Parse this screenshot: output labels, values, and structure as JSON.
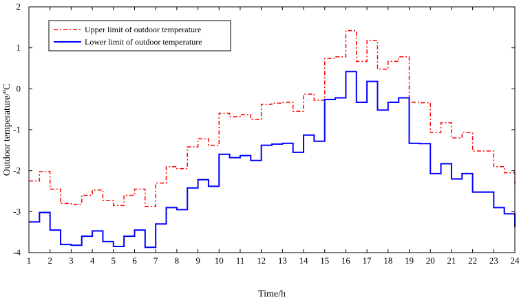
{
  "chart_data": {
    "type": "line",
    "title": "",
    "xlabel": "Time/h",
    "ylabel": "Outdoor temperature/ºC",
    "xlim": [
      1,
      24
    ],
    "ylim": [
      -4,
      2
    ],
    "x_ticks": [
      "1",
      "2",
      "3",
      "4",
      "5",
      "6",
      "7",
      "8",
      "9",
      "10",
      "11",
      "12",
      "13",
      "14",
      "15",
      "16",
      "17",
      "18",
      "19",
      "20",
      "21",
      "22",
      "23",
      "24"
    ],
    "y_ticks": [
      "-4",
      "-3",
      "-2",
      "-1",
      "0",
      "1",
      "2"
    ],
    "grid": false,
    "legend_position": "top-left",
    "series": [
      {
        "name": "Upper limit of outdoor temperature",
        "color": "#ff0000",
        "line_style": "dash-dot",
        "step": "post",
        "x": [
          1,
          1.5,
          2,
          2.5,
          3,
          3.5,
          4,
          4.5,
          5,
          5.5,
          6,
          6.5,
          7,
          7.5,
          8,
          8.5,
          9,
          9.5,
          10,
          10.5,
          11,
          11.5,
          12,
          12.5,
          13,
          13.5,
          14,
          14.5,
          15,
          15.5,
          16,
          16.5,
          17,
          17.5,
          18,
          18.5,
          19,
          19.5,
          20,
          20.5,
          21,
          21.5,
          22,
          22.5,
          23,
          23.5,
          24
        ],
        "values": [
          -2.25,
          -2.02,
          -2.45,
          -2.8,
          -2.82,
          -2.6,
          -2.47,
          -2.73,
          -2.85,
          -2.6,
          -2.45,
          -2.87,
          -2.3,
          -1.9,
          -1.95,
          -1.42,
          -1.22,
          -1.38,
          -0.6,
          -0.68,
          -0.63,
          -0.75,
          -0.38,
          -0.35,
          -0.33,
          -0.55,
          -0.13,
          -0.28,
          0.74,
          0.78,
          1.42,
          0.67,
          1.18,
          0.48,
          0.67,
          0.78,
          -0.33,
          -0.34,
          -1.07,
          -0.83,
          -1.2,
          -1.07,
          -1.52,
          -1.52,
          -1.9,
          -2.05,
          -2.38
        ]
      },
      {
        "name": "Lower limit of outdoor temperature",
        "color": "#0000ff",
        "line_style": "solid",
        "step": "post",
        "x": [
          1,
          1.5,
          2,
          2.5,
          3,
          3.5,
          4,
          4.5,
          5,
          5.5,
          6,
          6.5,
          7,
          7.5,
          8,
          8.5,
          9,
          9.5,
          10,
          10.5,
          11,
          11.5,
          12,
          12.5,
          13,
          13.5,
          14,
          14.5,
          15,
          15.5,
          16,
          16.5,
          17,
          17.5,
          18,
          18.5,
          19,
          19.5,
          20,
          20.5,
          21,
          21.5,
          22,
          22.5,
          23,
          23.5,
          24
        ],
        "values": [
          -3.25,
          -3.02,
          -3.45,
          -3.8,
          -3.82,
          -3.6,
          -3.47,
          -3.73,
          -3.85,
          -3.6,
          -3.45,
          -3.87,
          -3.3,
          -2.9,
          -2.95,
          -2.42,
          -2.22,
          -2.38,
          -1.6,
          -1.68,
          -1.63,
          -1.75,
          -1.38,
          -1.35,
          -1.33,
          -1.55,
          -1.13,
          -1.28,
          -0.26,
          -0.22,
          0.42,
          -0.33,
          0.18,
          -0.52,
          -0.33,
          -0.22,
          -1.33,
          -1.34,
          -2.07,
          -1.83,
          -2.2,
          -2.07,
          -2.52,
          -2.52,
          -2.9,
          -3.05,
          -3.38
        ]
      }
    ]
  }
}
